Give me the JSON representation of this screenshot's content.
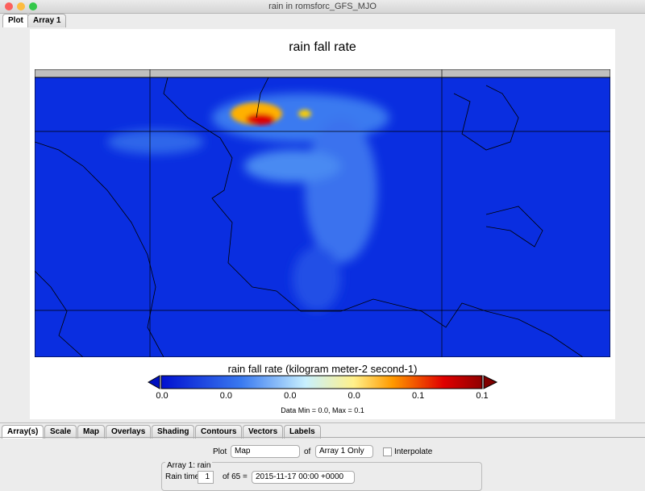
{
  "window": {
    "title": "rain in romsforc_GFS_MJO"
  },
  "top_tabs": [
    "Plot",
    "Array 1"
  ],
  "plot": {
    "title": "rain fall rate",
    "colorbar": {
      "label": "rain fall rate (kilogram meter-2 second-1)",
      "tick_labels": [
        "0.0",
        "0.0",
        "0.0",
        "0.0",
        "0.1",
        "0.1"
      ]
    },
    "data_range": "Data Min = 0.0, Max = 0.1"
  },
  "bottom_tabs": [
    "Array(s)",
    "Scale",
    "Map",
    "Overlays",
    "Shading",
    "Contours",
    "Vectors",
    "Labels"
  ],
  "controls": {
    "plot_label": "Plot",
    "plot_type": "Map",
    "of_label": "of",
    "array_choice": "Array 1 Only",
    "interpolate": "Interpolate",
    "group_title": "Array 1: rain",
    "time_label": "Rain time:",
    "time_index": "1",
    "time_count": "of 65 =",
    "time_value": "2015-11-17 00:00 +0000"
  }
}
